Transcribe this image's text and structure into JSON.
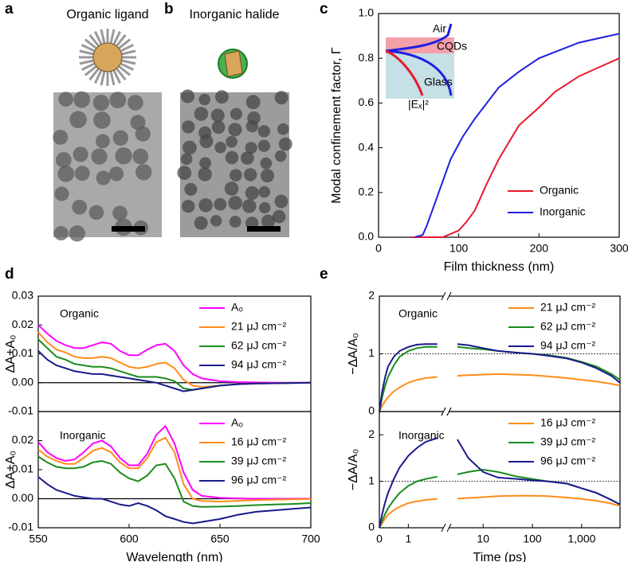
{
  "images": [
    {
      "label": "a",
      "title": "Organic ligand"
    },
    {
      "label": "b",
      "title": "Inorganic halide"
    }
  ],
  "chart_data": [
    {
      "type": "line",
      "label": "c",
      "xlabel": "Film thickness (nm)",
      "ylabel": "Modal confinement factor, Γ",
      "xlim": [
        0,
        300
      ],
      "xticks": [
        0,
        100,
        200,
        300
      ],
      "ylim": [
        0,
        1
      ],
      "yticks": [
        {
          "value": 0,
          "label": "0.0"
        },
        0.2,
        0.4,
        0.6,
        0.8,
        {
          "value": 1,
          "label": "1.0"
        }
      ],
      "legend": "lower right",
      "inset": {
        "top": "Air",
        "layer": "CQDs",
        "bottom": "Glass",
        "field": "|Eₓ|²"
      },
      "series": [
        {
          "name": "Organic",
          "color": "#e8192c",
          "x": [
            40,
            60,
            80,
            100,
            110,
            120,
            135,
            150,
            175,
            200,
            220,
            250,
            300
          ],
          "values": [
            0,
            0,
            0,
            0.03,
            0.07,
            0.12,
            0.24,
            0.35,
            0.5,
            0.58,
            0.65,
            0.72,
            0.8
          ]
        },
        {
          "name": "Inorganic",
          "color": "#1f1fe0",
          "x": [
            45,
            55,
            60,
            70,
            80,
            90,
            105,
            120,
            150,
            175,
            200,
            250,
            300
          ],
          "values": [
            0,
            0.01,
            0.05,
            0.15,
            0.25,
            0.35,
            0.45,
            0.53,
            0.67,
            0.74,
            0.8,
            0.87,
            0.91
          ]
        }
      ]
    },
    {
      "type": "line",
      "label": "d",
      "ylabel": "ΔA+A₀",
      "annotation": "Organic",
      "annotation_color": "#e8192c",
      "x": [
        550,
        555,
        560,
        565,
        570,
        575,
        580,
        585,
        590,
        595,
        600,
        605,
        610,
        615,
        620,
        625,
        630,
        635,
        640,
        650,
        660,
        670,
        680,
        690,
        700
      ],
      "xlim": [
        550,
        700
      ],
      "ylim": [
        -0.01,
        0.03
      ],
      "yticks": [
        -0.01,
        {
          "value": 0,
          "label": "0.00"
        },
        0.01,
        0.02,
        0.03
      ],
      "zeroline": true,
      "legend": "upper right",
      "series": [
        {
          "name": "A₀",
          "color": "#ff00ff",
          "values": [
            0.02,
            0.017,
            0.0145,
            0.013,
            0.012,
            0.012,
            0.013,
            0.014,
            0.0135,
            0.011,
            0.0095,
            0.0095,
            0.0115,
            0.013,
            0.0135,
            0.011,
            0.006,
            0.003,
            0.0015,
            0.0005,
            0.0002,
            0.0001,
            0,
            0,
            0
          ]
        },
        {
          "name": "21 μJ cm⁻²",
          "color": "#ff8c1a",
          "values": [
            0.0175,
            0.014,
            0.0115,
            0.0105,
            0.009,
            0.0085,
            0.0085,
            0.009,
            0.0085,
            0.007,
            0.0055,
            0.005,
            0.0055,
            0.0065,
            0.007,
            0.005,
            0.001,
            -0.001,
            -0.0015,
            -0.001,
            -0.0005,
            -0.0003,
            -0.0002,
            -0.0001,
            0
          ]
        },
        {
          "name": "62 μJ cm⁻²",
          "color": "#1a8c1a",
          "values": [
            0.015,
            0.012,
            0.009,
            0.008,
            0.0065,
            0.006,
            0.0055,
            0.0055,
            0.005,
            0.004,
            0.003,
            0.002,
            0.002,
            0.002,
            0.0015,
            0.0005,
            -0.002,
            -0.0025,
            -0.002,
            -0.001,
            -0.0005,
            -0.0003,
            -0.0002,
            -0.0001,
            0
          ]
        },
        {
          "name": "94 μJ cm⁻²",
          "color": "#1a1a8c",
          "values": [
            0.011,
            0.008,
            0.006,
            0.005,
            0.004,
            0.0035,
            0.003,
            0.003,
            0.0025,
            0.002,
            0.0015,
            0.001,
            0.0005,
            0,
            -0.001,
            -0.002,
            -0.003,
            -0.0025,
            -0.002,
            -0.001,
            -0.0005,
            -0.0003,
            -0.0002,
            -0.0001,
            0
          ]
        }
      ]
    },
    {
      "type": "line",
      "xlabel": "Wavelength (nm)",
      "ylabel": "ΔA+A₀",
      "annotation": "Inorganic",
      "annotation_color": "#1f1fd6",
      "x": [
        550,
        555,
        560,
        565,
        570,
        575,
        580,
        585,
        590,
        595,
        600,
        605,
        610,
        615,
        620,
        625,
        630,
        635,
        640,
        650,
        660,
        670,
        680,
        690,
        700
      ],
      "xlim": [
        550,
        700
      ],
      "xticks": [
        550,
        600,
        650,
        700
      ],
      "ylim": [
        -0.01,
        0.03
      ],
      "yticks": [
        -0.01,
        {
          "value": 0,
          "label": "0.00"
        },
        0.01,
        0.02
      ],
      "zeroline": true,
      "legend": "upper right",
      "series": [
        {
          "name": "A₀",
          "color": "#ff00ff",
          "values": [
            0.0195,
            0.016,
            0.014,
            0.013,
            0.0135,
            0.016,
            0.019,
            0.02,
            0.018,
            0.014,
            0.0115,
            0.0115,
            0.0155,
            0.022,
            0.025,
            0.019,
            0.009,
            0.003,
            0.001,
            0.0003,
            0.0001,
            0,
            0,
            0,
            0
          ]
        },
        {
          "name": "16 μJ cm⁻²",
          "color": "#ff8c1a",
          "values": [
            0.017,
            0.0145,
            0.013,
            0.012,
            0.012,
            0.014,
            0.0165,
            0.0175,
            0.016,
            0.0125,
            0.0105,
            0.0105,
            0.014,
            0.0195,
            0.021,
            0.016,
            0.005,
            0,
            -0.0008,
            -0.001,
            -0.0007,
            -0.0005,
            -0.0003,
            -0.0002,
            -0.0001
          ]
        },
        {
          "name": "39 μJ cm⁻²",
          "color": "#1a8c1a",
          "values": [
            0.0145,
            0.0125,
            0.011,
            0.0105,
            0.0105,
            0.011,
            0.0125,
            0.013,
            0.012,
            0.009,
            0.007,
            0.006,
            0.008,
            0.0115,
            0.012,
            0.007,
            -0.001,
            -0.0025,
            -0.0028,
            -0.0027,
            -0.0025,
            -0.0022,
            -0.002,
            -0.0018,
            -0.0015
          ]
        },
        {
          "name": "96 μJ cm⁻²",
          "color": "#1a1a8c",
          "values": [
            0.0075,
            0.005,
            0.003,
            0.002,
            0.001,
            0.0005,
            0,
            0,
            -0.001,
            -0.002,
            -0.0025,
            -0.0015,
            -0.0025,
            -0.004,
            -0.006,
            -0.007,
            -0.008,
            -0.0085,
            -0.008,
            -0.007,
            -0.0055,
            -0.0045,
            -0.004,
            -0.0035,
            -0.003
          ]
        }
      ]
    },
    {
      "type": "line",
      "label": "e",
      "ylabel": "−ΔA/A₀",
      "annotation": "Organic",
      "annotation_color": "#e8192c",
      "x": [
        0,
        0.1,
        0.2,
        0.3,
        0.5,
        0.7,
        1,
        1.3,
        1.6,
        2,
        3,
        5,
        10,
        20,
        50,
        100,
        200,
        500,
        1000,
        2000,
        4000,
        6000
      ],
      "xsegments": [
        {
          "scale": "linear",
          "lim": [
            0,
            2.2
          ]
        },
        {
          "scale": "log",
          "lim": [
            2,
            6000
          ]
        }
      ],
      "ylim": [
        0,
        2
      ],
      "yticks": [
        0,
        1,
        2
      ],
      "hline": 1,
      "legend": "upper right",
      "series": [
        {
          "name": "21 μJ cm⁻²",
          "color": "#ff8c1a",
          "values": [
            0,
            0.1,
            0.18,
            0.25,
            0.35,
            0.42,
            0.5,
            0.55,
            0.58,
            0.6,
            0.62,
            0.63,
            0.64,
            0.65,
            0.64,
            0.63,
            0.61,
            0.58,
            0.55,
            0.52,
            0.48,
            0.45
          ]
        },
        {
          "name": "62 μJ cm⁻²",
          "color": "#1a8c1a",
          "values": [
            0,
            0.25,
            0.45,
            0.6,
            0.8,
            0.95,
            1.05,
            1.1,
            1.12,
            1.12,
            1.12,
            1.1,
            1.08,
            1.05,
            1.02,
            1.0,
            0.98,
            0.93,
            0.86,
            0.78,
            0.65,
            0.55
          ]
        },
        {
          "name": "94 μJ cm⁻²",
          "color": "#1a1a8c",
          "values": [
            0,
            0.35,
            0.6,
            0.78,
            0.95,
            1.05,
            1.12,
            1.16,
            1.17,
            1.17,
            1.17,
            1.15,
            1.1,
            1.05,
            1.02,
            1.0,
            0.97,
            0.92,
            0.85,
            0.75,
            0.62,
            0.5
          ]
        }
      ]
    },
    {
      "type": "line",
      "xlabel": "Time (ps)",
      "ylabel": "−ΔA/A₀",
      "annotation": "Inorganic",
      "annotation_color": "#1f1fd6",
      "x": [
        0,
        0.1,
        0.2,
        0.3,
        0.5,
        0.7,
        1,
        1.3,
        1.6,
        2,
        3,
        5,
        10,
        20,
        50,
        100,
        200,
        500,
        1000,
        2000,
        4000,
        6000
      ],
      "xsegments": [
        {
          "scale": "linear",
          "lim": [
            0,
            2.2
          ]
        },
        {
          "scale": "log",
          "lim": [
            2,
            6000
          ]
        }
      ],
      "xticks": [
        0,
        1,
        10,
        100,
        {
          "value": 1000,
          "label": "1,000"
        }
      ],
      "ylim": [
        0,
        2.5
      ],
      "yticks": [
        0,
        1,
        2
      ],
      "hline": 1,
      "legend": "upper right",
      "series": [
        {
          "name": "16 μJ cm⁻²",
          "color": "#ff8c1a",
          "values": [
            0,
            0.1,
            0.2,
            0.28,
            0.38,
            0.45,
            0.53,
            0.57,
            0.6,
            0.62,
            0.63,
            0.64,
            0.66,
            0.68,
            0.69,
            0.69,
            0.68,
            0.65,
            0.62,
            0.58,
            0.52,
            0.47
          ]
        },
        {
          "name": "39 μJ cm⁻²",
          "color": "#1a8c1a",
          "values": [
            0,
            0.15,
            0.3,
            0.42,
            0.6,
            0.75,
            0.9,
            1.0,
            1.05,
            1.1,
            1.15,
            1.2,
            1.25,
            1.2,
            1.1,
            1.05,
            1.0,
            0.95,
            0.85,
            0.75,
            0.6,
            0.5
          ]
        },
        {
          "name": "96 μJ cm⁻²",
          "color": "#1a1a8c",
          "values": [
            0,
            0.3,
            0.55,
            0.75,
            1.05,
            1.3,
            1.55,
            1.72,
            1.85,
            1.93,
            1.9,
            1.5,
            1.2,
            1.08,
            1.05,
            1.02,
            1.0,
            0.95,
            0.85,
            0.75,
            0.6,
            0.5
          ]
        }
      ]
    }
  ]
}
